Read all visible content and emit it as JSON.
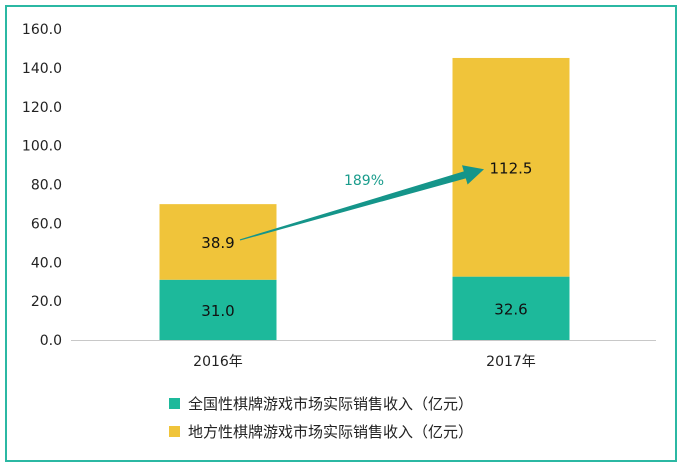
{
  "chart_data": {
    "type": "bar",
    "stacked": true,
    "categories": [
      "2016年",
      "2017年"
    ],
    "series": [
      {
        "name": "全国性棋牌游戏市场实际销售收入（亿元）",
        "values": [
          31.0,
          32.6
        ],
        "color": "#1db99b"
      },
      {
        "name": "地方性棋牌游戏市场实际销售收入（亿元）",
        "values": [
          38.9,
          112.5
        ],
        "color": "#f0c43a"
      }
    ],
    "value_labels": [
      [
        "31.0",
        "32.6"
      ],
      [
        "38.9",
        "112.5"
      ]
    ],
    "ylim": [
      0,
      160
    ],
    "yticks": [
      "0.0",
      "20.0",
      "40.0",
      "60.0",
      "80.0",
      "100.0",
      "120.0",
      "140.0",
      "160.0"
    ],
    "annotation": {
      "text": "189%",
      "from": "38.9",
      "to": "112.5",
      "color": "#15958a"
    },
    "legend_position": "bottom",
    "grid": false
  },
  "frame_color": "#2bb8a3"
}
